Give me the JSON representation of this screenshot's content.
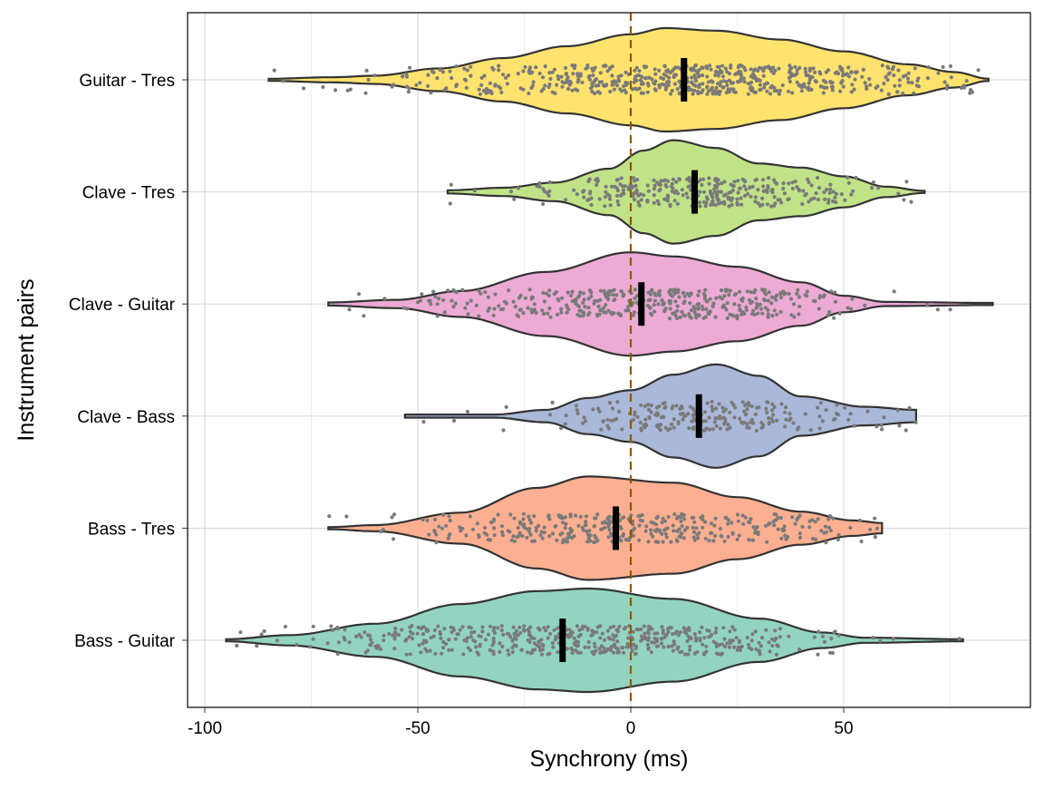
{
  "chart_data": {
    "type": "violin",
    "title": "",
    "xlabel": "Synchrony (ms)",
    "ylabel": "Instrument pairs",
    "xlim": [
      -106,
      92
    ],
    "xticks": [
      -100,
      -50,
      0,
      50
    ],
    "xtick_labels": [
      "-100",
      "-50",
      "0",
      "50"
    ],
    "reference_line": {
      "x": 0,
      "style": "dashed",
      "color": "#8B5A00"
    },
    "grid": true,
    "point_color": "#7a7a7a",
    "median_color": "#000000",
    "series": [
      {
        "name": "Guitar - Tres",
        "color": "#FFE36E",
        "median": 12.5,
        "min": -85,
        "max": 84,
        "n_points": 620,
        "density": [
          [
            -85,
            0.02
          ],
          [
            -70,
            0.05
          ],
          [
            -60,
            0.08
          ],
          [
            -45,
            0.22
          ],
          [
            -30,
            0.42
          ],
          [
            -15,
            0.65
          ],
          [
            0,
            0.88
          ],
          [
            8,
            1
          ],
          [
            20,
            0.95
          ],
          [
            35,
            0.78
          ],
          [
            50,
            0.55
          ],
          [
            65,
            0.3
          ],
          [
            76,
            0.15
          ],
          [
            84,
            0.02
          ]
        ]
      },
      {
        "name": "Clave - Tres",
        "color": "#C0E388",
        "median": 15,
        "min": -43,
        "max": 69,
        "n_points": 330,
        "density": [
          [
            -43,
            0.03
          ],
          [
            -30,
            0.08
          ],
          [
            -18,
            0.18
          ],
          [
            -5,
            0.45
          ],
          [
            3,
            0.8
          ],
          [
            10,
            1
          ],
          [
            20,
            0.85
          ],
          [
            30,
            0.55
          ],
          [
            40,
            0.47
          ],
          [
            50,
            0.3
          ],
          [
            60,
            0.1
          ],
          [
            69,
            0.02
          ]
        ]
      },
      {
        "name": "Clave - Guitar",
        "color": "#ECAAD4",
        "median": 2.5,
        "min": -71,
        "max": 85,
        "n_points": 420,
        "density": [
          [
            -71,
            0.03
          ],
          [
            -55,
            0.08
          ],
          [
            -40,
            0.25
          ],
          [
            -20,
            0.62
          ],
          [
            0,
            1
          ],
          [
            10,
            0.92
          ],
          [
            25,
            0.72
          ],
          [
            40,
            0.42
          ],
          [
            50,
            0.16
          ],
          [
            60,
            0.04
          ],
          [
            85,
            0.02
          ]
        ]
      },
      {
        "name": "Clave - Bass",
        "color": "#AAB8D9",
        "median": 16,
        "min": -53,
        "max": 67,
        "n_points": 230,
        "density": [
          [
            -53,
            0.03
          ],
          [
            -32,
            0.03
          ],
          [
            -20,
            0.12
          ],
          [
            -10,
            0.35
          ],
          [
            0,
            0.5
          ],
          [
            10,
            0.8
          ],
          [
            20,
            1
          ],
          [
            30,
            0.78
          ],
          [
            40,
            0.38
          ],
          [
            55,
            0.18
          ],
          [
            67,
            0.12
          ]
        ]
      },
      {
        "name": "Bass - Tres",
        "color": "#FDB091",
        "median": -3.5,
        "min": -71,
        "max": 59,
        "n_points": 380,
        "density": [
          [
            -71,
            0.02
          ],
          [
            -60,
            0.06
          ],
          [
            -40,
            0.3
          ],
          [
            -22,
            0.78
          ],
          [
            -10,
            1
          ],
          [
            10,
            0.88
          ],
          [
            25,
            0.6
          ],
          [
            40,
            0.32
          ],
          [
            52,
            0.15
          ],
          [
            59,
            0.1
          ]
        ]
      },
      {
        "name": "Bass - Guitar",
        "color": "#93D4C0",
        "median": -16,
        "min": -95,
        "max": 78,
        "n_points": 520,
        "density": [
          [
            -95,
            0.02
          ],
          [
            -80,
            0.1
          ],
          [
            -60,
            0.32
          ],
          [
            -40,
            0.7
          ],
          [
            -22,
            0.95
          ],
          [
            -10,
            1
          ],
          [
            10,
            0.8
          ],
          [
            30,
            0.42
          ],
          [
            45,
            0.15
          ],
          [
            55,
            0.05
          ],
          [
            78,
            0.02
          ]
        ]
      }
    ]
  }
}
